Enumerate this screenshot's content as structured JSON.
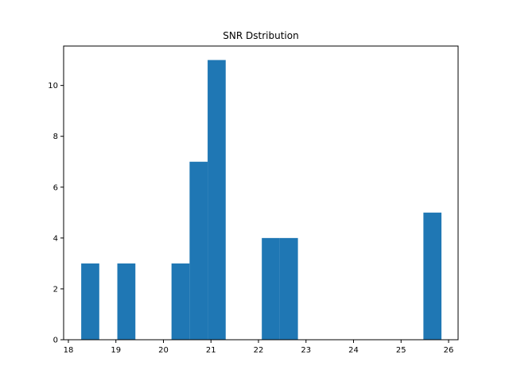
{
  "chart_data": {
    "type": "bar",
    "title": "SNR Dstribution",
    "xlabel": "",
    "ylabel": "",
    "xlim": [
      17.9,
      26.2
    ],
    "ylim": [
      0,
      11.55
    ],
    "grid": false,
    "bar_color": "#1f77b4",
    "bins": [
      {
        "x0": 18.27,
        "x1": 18.65,
        "count": 3
      },
      {
        "x0": 19.03,
        "x1": 19.41,
        "count": 3
      },
      {
        "x0": 20.17,
        "x1": 20.55,
        "count": 3
      },
      {
        "x0": 20.55,
        "x1": 20.93,
        "count": 7
      },
      {
        "x0": 20.93,
        "x1": 21.31,
        "count": 11
      },
      {
        "x0": 22.07,
        "x1": 22.45,
        "count": 4
      },
      {
        "x0": 22.45,
        "x1": 22.83,
        "count": 4
      },
      {
        "x0": 25.47,
        "x1": 25.85,
        "count": 5
      }
    ],
    "x_ticks": [
      18,
      19,
      20,
      21,
      22,
      23,
      24,
      25,
      26
    ],
    "y_ticks": [
      0,
      2,
      4,
      6,
      8,
      10
    ]
  }
}
